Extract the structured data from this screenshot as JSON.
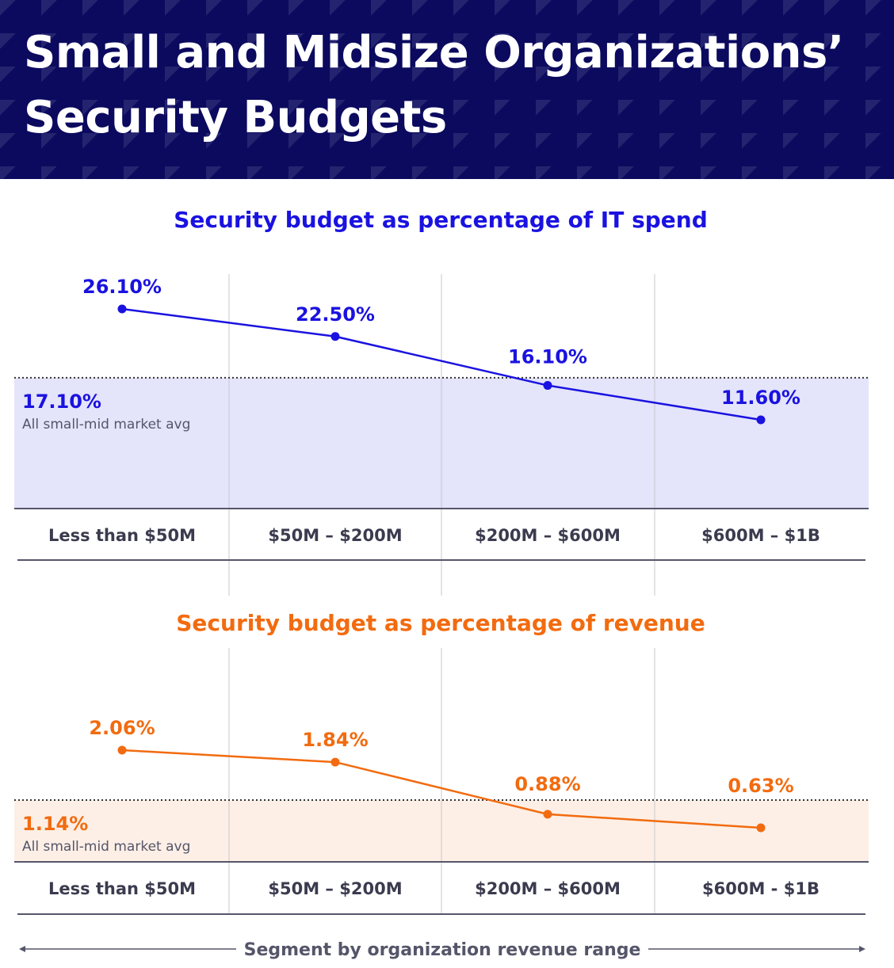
{
  "header": {
    "title_line1": "Small and Midsize Organizations’",
    "title_line2": "Security Budgets"
  },
  "x_axis_label": "Segment by organization revenue range",
  "chart_data": [
    {
      "type": "line",
      "title": "Security budget as percentage of IT spend",
      "categories": [
        "Less than $50M",
        "$50M – $200M",
        "$200M – $600M",
        "$600M – $1B"
      ],
      "values": [
        26.1,
        22.5,
        16.1,
        11.6
      ],
      "labels": [
        "26.10%",
        "22.50%",
        "16.10%",
        "11.60%"
      ],
      "average": {
        "value": 17.1,
        "label": "17.10%",
        "caption": "All small-mid market avg"
      },
      "color": "#1a12e0",
      "fill": "#e4e4fb",
      "xlabel": "Segment by organization revenue range",
      "ylabel": ""
    },
    {
      "type": "line",
      "title": "Security budget as percentage of revenue",
      "categories": [
        "Less than $50M",
        "$50M – $200M",
        "$200M – $600M",
        "$600M - $1B"
      ],
      "values": [
        2.06,
        1.84,
        0.88,
        0.63
      ],
      "labels": [
        "2.06%",
        "1.84%",
        "0.88%",
        "0.63%"
      ],
      "average": {
        "value": 1.14,
        "label": "1.14%",
        "caption": "All small-mid market avg"
      },
      "color": "#f26b0f",
      "fill": "#fdefe6",
      "xlabel": "Segment by organization revenue range",
      "ylabel": ""
    }
  ]
}
